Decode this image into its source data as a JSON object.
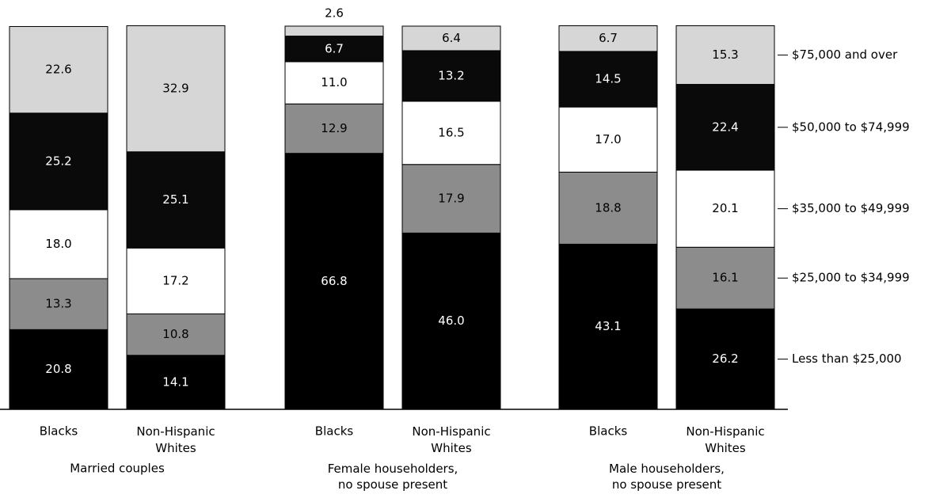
{
  "chart_data": {
    "type": "stacked_bar",
    "categories": [
      "Blacks",
      "Non-Hispanic Whites",
      "Blacks",
      "Non-Hispanic Whites",
      "Blacks",
      "Non-Hispanic Whites"
    ],
    "groups": [
      "Married couples",
      "Female householders, no spouse present",
      "Male householders, no spouse present"
    ],
    "ylim": [
      0,
      100
    ],
    "series": [
      {
        "name": "Less than $25,000",
        "color": "#000000",
        "values": [
          20.8,
          14.1,
          66.8,
          46.0,
          43.1,
          26.2
        ],
        "value_labels": [
          "20.8",
          "14.1",
          "66.8",
          "46.0",
          "43.1",
          "26.2"
        ]
      },
      {
        "name": "$25,000 to $34,999",
        "color": "#8c8c8c",
        "values": [
          13.3,
          10.8,
          12.9,
          17.9,
          18.8,
          16.1
        ],
        "value_labels": [
          "13.3",
          "10.8",
          "12.9",
          "17.9",
          "18.8",
          "16.1"
        ]
      },
      {
        "name": "$35,000 to $49,999",
        "color": "#ffffff",
        "values": [
          18.0,
          17.2,
          11.0,
          16.5,
          17.0,
          20.1
        ],
        "value_labels": [
          "18.0",
          "17.2",
          "11.0",
          "16.5",
          "17.0",
          "20.1"
        ]
      },
      {
        "name": "$50,000 to $74,999",
        "color": "#0a0a0a",
        "values": [
          25.2,
          25.1,
          6.7,
          13.2,
          14.5,
          22.4
        ],
        "value_labels": [
          "25.2",
          "25.1",
          "6.7",
          "13.2",
          "14.5",
          "22.4"
        ]
      },
      {
        "name": "$75,000 and over",
        "color": "#d6d6d6",
        "values": [
          22.6,
          32.9,
          2.6,
          6.4,
          6.7,
          15.3
        ],
        "value_labels": [
          "22.6",
          "32.9",
          "2.6",
          "6.4",
          "6.7",
          "15.3"
        ]
      }
    ]
  }
}
